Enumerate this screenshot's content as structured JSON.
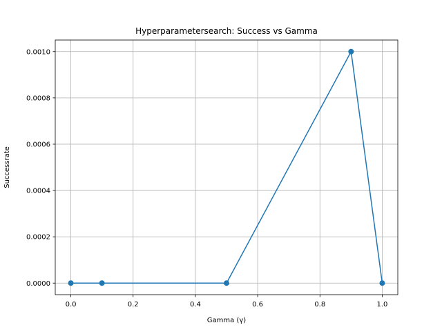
{
  "chart_data": {
    "type": "line",
    "title": "Hyperparametersearch: Success vs Gamma",
    "xlabel": "Gamma (γ)",
    "ylabel": "Successrate",
    "xlim": [
      -0.05,
      1.05
    ],
    "ylim": [
      -5e-05,
      0.00105
    ],
    "xticks": [
      0.0,
      0.2,
      0.4,
      0.6,
      0.8,
      1.0
    ],
    "xtick_labels": [
      "0.0",
      "0.2",
      "0.4",
      "0.6",
      "0.8",
      "1.0"
    ],
    "yticks": [
      0.0,
      0.0002,
      0.0004,
      0.0006,
      0.0008,
      0.001
    ],
    "ytick_labels": [
      "0.0000",
      "0.0002",
      "0.0004",
      "0.0006",
      "0.0008",
      "0.0010"
    ],
    "grid": true,
    "series": [
      {
        "x": [
          0.0,
          0.1,
          0.5,
          0.9,
          1.0
        ],
        "y": [
          0.0,
          0.0,
          0.0,
          0.001,
          0.0
        ],
        "color": "#1f77b4",
        "marker": "circle"
      }
    ]
  }
}
